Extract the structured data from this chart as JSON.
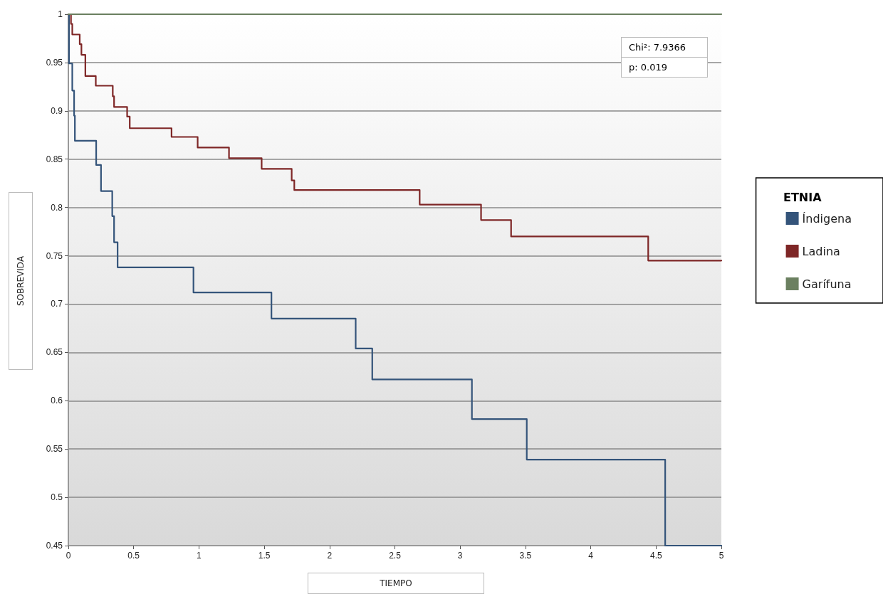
{
  "chart_data": {
    "type": "step",
    "xlabel": "TIEMPO",
    "ylabel": "SOBREVIDA",
    "legend_title": "ETNIA",
    "annotations": [
      "Chi²: 7.9366",
      "p: 0.019"
    ],
    "series": [
      {
        "name": "Índigena",
        "color": "#34547a",
        "x": [
          0,
          0.005,
          0.03,
          0.044,
          0.05,
          0.213,
          0.25,
          0.336,
          0.35,
          0.377,
          0.958,
          1.555,
          2.2,
          2.327,
          3.09,
          3.51,
          4.57,
          5
        ],
        "values": [
          1,
          0.949,
          0.921,
          0.895,
          0.869,
          0.844,
          0.817,
          0.791,
          0.764,
          0.738,
          0.712,
          0.685,
          0.654,
          0.622,
          0.581,
          0.539,
          0.45,
          0.45
        ]
      },
      {
        "name": "Ladina",
        "color": "#7e2626",
        "x": [
          0,
          0.02,
          0.03,
          0.087,
          0.1,
          0.13,
          0.21,
          0.34,
          0.35,
          0.45,
          0.47,
          0.79,
          0.99,
          1.23,
          1.48,
          1.71,
          1.73,
          2.69,
          3.16,
          3.39,
          4.44,
          5
        ],
        "values": [
          1,
          0.99,
          0.979,
          0.969,
          0.958,
          0.936,
          0.926,
          0.915,
          0.904,
          0.894,
          0.882,
          0.873,
          0.862,
          0.851,
          0.84,
          0.828,
          0.818,
          0.803,
          0.787,
          0.77,
          0.745,
          0.745
        ]
      },
      {
        "name": "Garífuna",
        "color": "#6b8060",
        "x": [
          0,
          5
        ],
        "values": [
          1,
          1
        ]
      }
    ],
    "xlim": [
      0,
      5
    ],
    "xticks": [
      0,
      0.5,
      1,
      1.5,
      2,
      2.5,
      3,
      3.5,
      4,
      4.5,
      5
    ],
    "ylim": [
      0.45,
      1
    ],
    "yticks": [
      0.45,
      0.5,
      0.55,
      0.6,
      0.65,
      0.7,
      0.75,
      0.8,
      0.85,
      0.9,
      0.95,
      1
    ],
    "grid": "y",
    "legend": "right",
    "marker": "none",
    "line_style": "solid"
  }
}
